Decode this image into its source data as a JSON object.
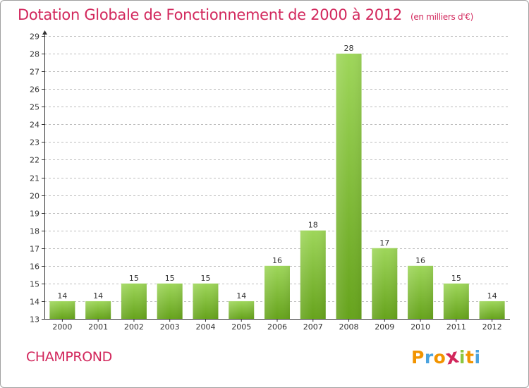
{
  "header": {
    "title": "Dotation Globale de Fonctionnement de 2000 à 2012",
    "unit": "(en milliers d'€)"
  },
  "footer": {
    "commune": "CHAMPROND",
    "brand": {
      "letters": [
        "P",
        "r",
        "o",
        "x",
        "i",
        "t",
        "i"
      ],
      "colors": [
        "#f29400",
        "#4aa3df",
        "#f29400",
        "#d2275c",
        "#8cc63f",
        "#f29400",
        "#4aa3df"
      ]
    }
  },
  "colors": {
    "title": "#d2275c",
    "bar_light": "#9ed65a",
    "bar_dark": "#66a31c",
    "axis": "#333333",
    "grid": "#bdbdbd",
    "background": "#ffffff"
  },
  "chart_data": {
    "type": "bar",
    "title": "Dotation Globale de Fonctionnement de 2000 à 2012",
    "subtitle": "(en milliers d'€)",
    "xlabel": "",
    "ylabel": "",
    "categories": [
      "2000",
      "2001",
      "2002",
      "2003",
      "2004",
      "2005",
      "2006",
      "2007",
      "2008",
      "2009",
      "2010",
      "2011",
      "2012"
    ],
    "values": [
      14,
      14,
      15,
      15,
      15,
      14,
      16,
      18,
      28,
      17,
      16,
      15,
      14
    ],
    "ylim": [
      13,
      29
    ],
    "yticks": [
      13,
      14,
      15,
      16,
      17,
      18,
      19,
      20,
      21,
      22,
      23,
      24,
      25,
      26,
      27,
      28,
      29
    ],
    "grid": "horizontal-dashed",
    "legend": "none"
  }
}
